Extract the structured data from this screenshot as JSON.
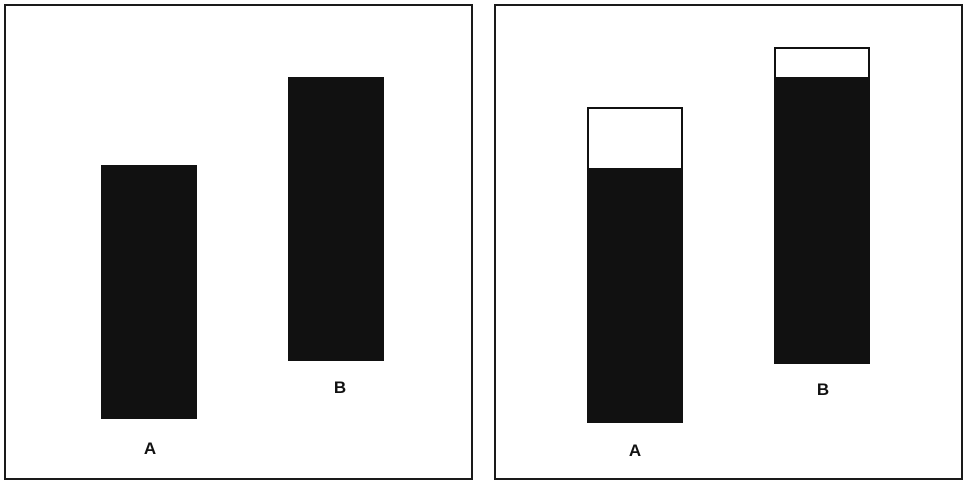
{
  "left_panel": {
    "bars": [
      {
        "label": "A"
      },
      {
        "label": "B"
      }
    ]
  },
  "right_panel": {
    "bars": [
      {
        "label": "A"
      },
      {
        "label": "B"
      }
    ]
  }
}
